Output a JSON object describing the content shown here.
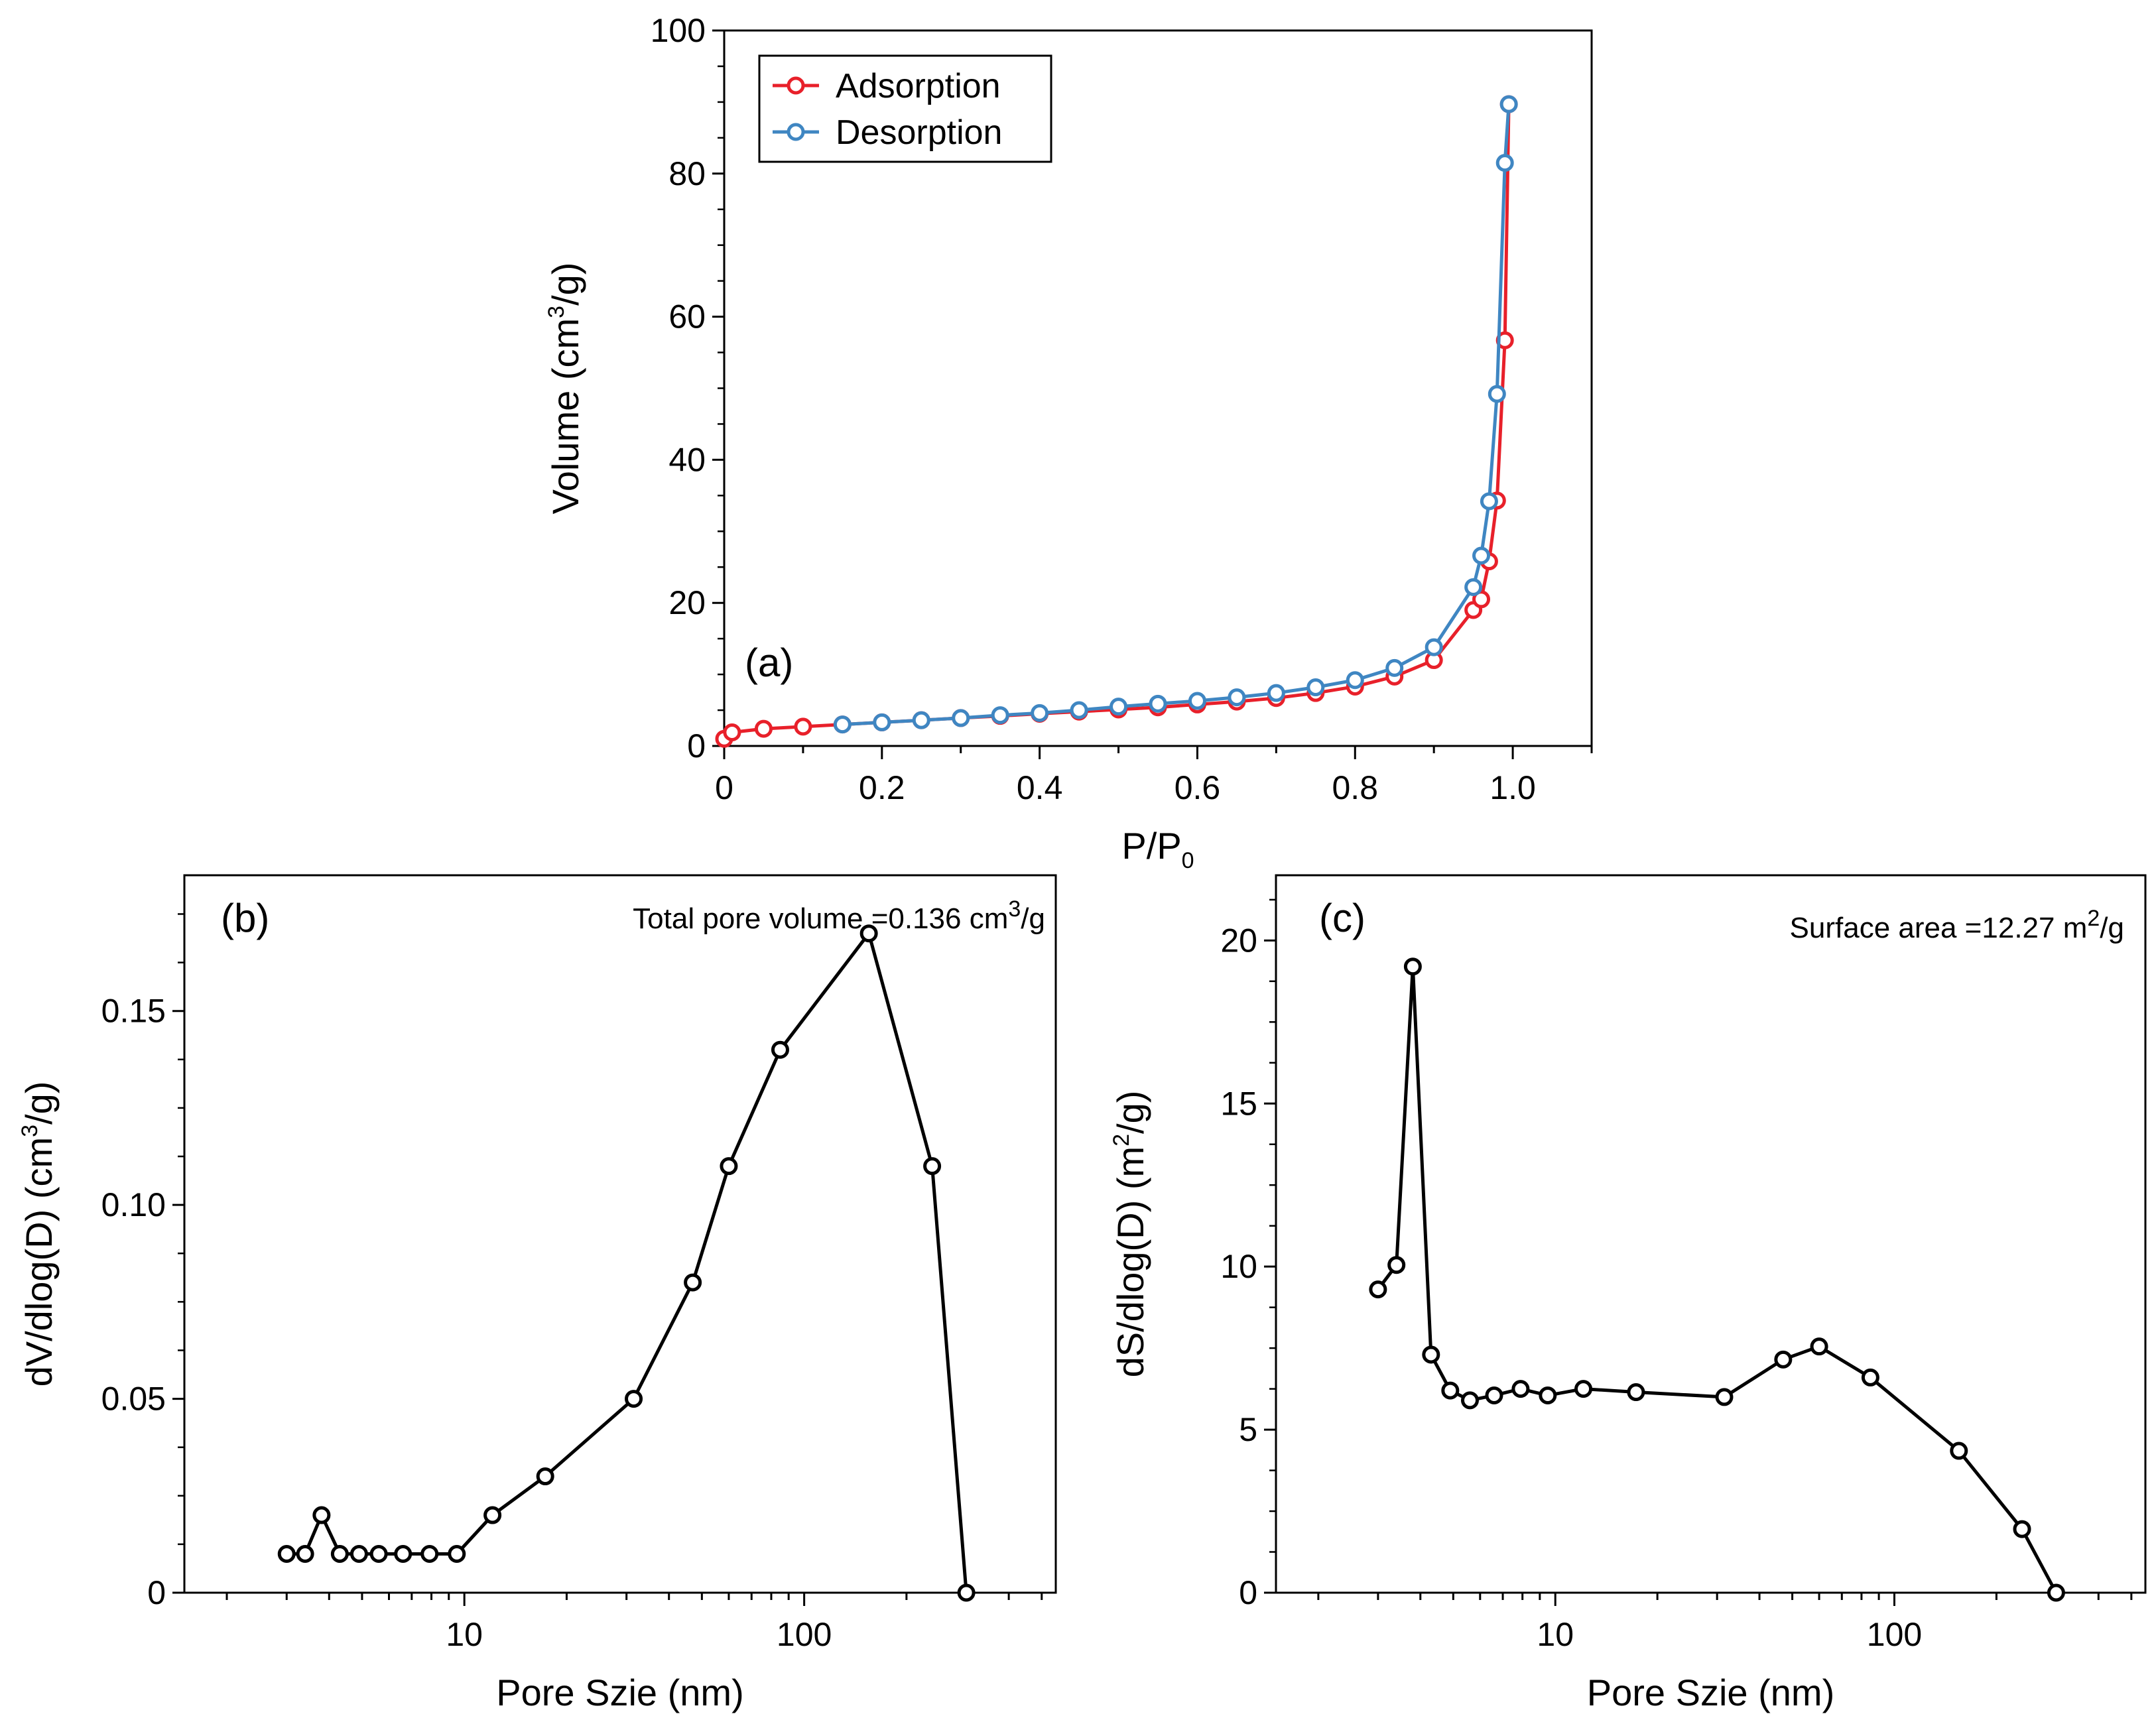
{
  "chart_data": [
    {
      "id": "a",
      "type": "line",
      "panel_label": "(a)",
      "xlabel": "P/P",
      "xlabel_sub": "0",
      "ylabel_pre": "Volume (cm",
      "ylabel_sup": "3",
      "ylabel_post": "/g)",
      "xlim": [
        0,
        1.1
      ],
      "ylim": [
        0,
        100
      ],
      "x_ticks": [
        0,
        0.2,
        0.4,
        0.6,
        0.8,
        1.0
      ],
      "x_tick_labels": [
        "0",
        "0.2",
        "0.4",
        "0.6",
        "0.8",
        "1.0"
      ],
      "y_ticks": [
        0,
        20,
        40,
        60,
        80,
        100
      ],
      "y_tick_labels": [
        "0",
        "20",
        "40",
        "60",
        "80",
        "100"
      ],
      "legend": {
        "position": "top-left"
      },
      "series": [
        {
          "name": "Adsorption",
          "color": "#e8202a",
          "x": [
            0.0,
            0.01,
            0.05,
            0.1,
            0.15,
            0.2,
            0.25,
            0.3,
            0.35,
            0.4,
            0.45,
            0.5,
            0.55,
            0.6,
            0.65,
            0.7,
            0.75,
            0.8,
            0.85,
            0.9,
            0.95,
            0.96,
            0.97,
            0.98,
            0.99,
            0.995
          ],
          "y": [
            1.0,
            1.9,
            2.4,
            2.7,
            3.0,
            3.3,
            3.6,
            3.9,
            4.2,
            4.5,
            4.8,
            5.1,
            5.4,
            5.8,
            6.2,
            6.7,
            7.4,
            8.3,
            9.7,
            12.0,
            19.0,
            20.5,
            25.8,
            34.3,
            56.7,
            89.7
          ]
        },
        {
          "name": "Desorption",
          "color": "#3f86c2",
          "x": [
            0.995,
            0.99,
            0.98,
            0.97,
            0.96,
            0.95,
            0.9,
            0.85,
            0.8,
            0.75,
            0.7,
            0.65,
            0.6,
            0.55,
            0.5,
            0.45,
            0.4,
            0.35,
            0.3,
            0.25,
            0.2,
            0.15
          ],
          "y": [
            89.7,
            81.5,
            49.2,
            34.2,
            26.6,
            22.2,
            13.8,
            10.9,
            9.2,
            8.2,
            7.4,
            6.8,
            6.3,
            5.9,
            5.5,
            5.0,
            4.6,
            4.3,
            3.9,
            3.6,
            3.3,
            3.0
          ]
        }
      ]
    },
    {
      "id": "b",
      "type": "line",
      "panel_label": "(b)",
      "xscale": "log",
      "xlabel": "Pore Szie (nm)",
      "ylabel_pre": "dV/dlog(D) (cm",
      "ylabel_sup": "3",
      "ylabel_post": "/g)",
      "annotation_pre": "Total pore volume =0.136 cm",
      "annotation_sup": "3",
      "annotation_post": "/g",
      "xlim": [
        1.5,
        550
      ],
      "ylim": [
        0,
        0.185
      ],
      "x_ticks": [
        10,
        100
      ],
      "x_tick_labels": [
        "10",
        "100"
      ],
      "y_ticks": [
        0,
        0.05,
        0.1,
        0.15
      ],
      "y_tick_labels": [
        "0",
        "0.05",
        "0.10",
        "0.15"
      ],
      "series": [
        {
          "name": "dV/dlog(D)",
          "color": "#000000",
          "x": [
            3.0,
            3.4,
            3.8,
            4.3,
            4.9,
            5.6,
            6.6,
            7.9,
            9.5,
            12.1,
            17.3,
            31.5,
            47.0,
            60.0,
            85.0,
            155.0,
            238.0,
            300.0
          ],
          "y": [
            0.01,
            0.01,
            0.02,
            0.01,
            0.01,
            0.01,
            0.01,
            0.01,
            0.01,
            0.02,
            0.03,
            0.05,
            0.08,
            0.11,
            0.14,
            0.17,
            0.11,
            0.0
          ]
        }
      ]
    },
    {
      "id": "c",
      "type": "line",
      "panel_label": "(c)",
      "xscale": "log",
      "xlabel": "Pore Szie (nm)",
      "ylabel_pre": "dS/dlog(D) (m",
      "ylabel_sup": "2",
      "ylabel_post": "/g)",
      "annotation_pre": "Surface  area =12.27 m",
      "annotation_sup": "2",
      "annotation_post": "/g",
      "xlim": [
        1.5,
        550
      ],
      "ylim": [
        0,
        22
      ],
      "x_ticks": [
        10,
        100
      ],
      "x_tick_labels": [
        "10",
        "100"
      ],
      "y_ticks": [
        0,
        5,
        10,
        15,
        20
      ],
      "y_tick_labels": [
        "0",
        "5",
        "10",
        "15",
        "20"
      ],
      "series": [
        {
          "name": "dS/dlog(D)",
          "color": "#000000",
          "x": [
            3.0,
            3.4,
            3.8,
            4.3,
            4.9,
            5.6,
            6.6,
            7.9,
            9.5,
            12.1,
            17.3,
            31.5,
            47.0,
            60.0,
            85.0,
            155.0,
            238.0,
            300.0
          ],
          "y": [
            9.3,
            10.05,
            19.2,
            7.3,
            6.2,
            5.9,
            6.05,
            6.25,
            6.05,
            6.25,
            6.15,
            6.0,
            7.15,
            7.55,
            6.6,
            4.35,
            1.95,
            0.0
          ]
        }
      ]
    }
  ]
}
